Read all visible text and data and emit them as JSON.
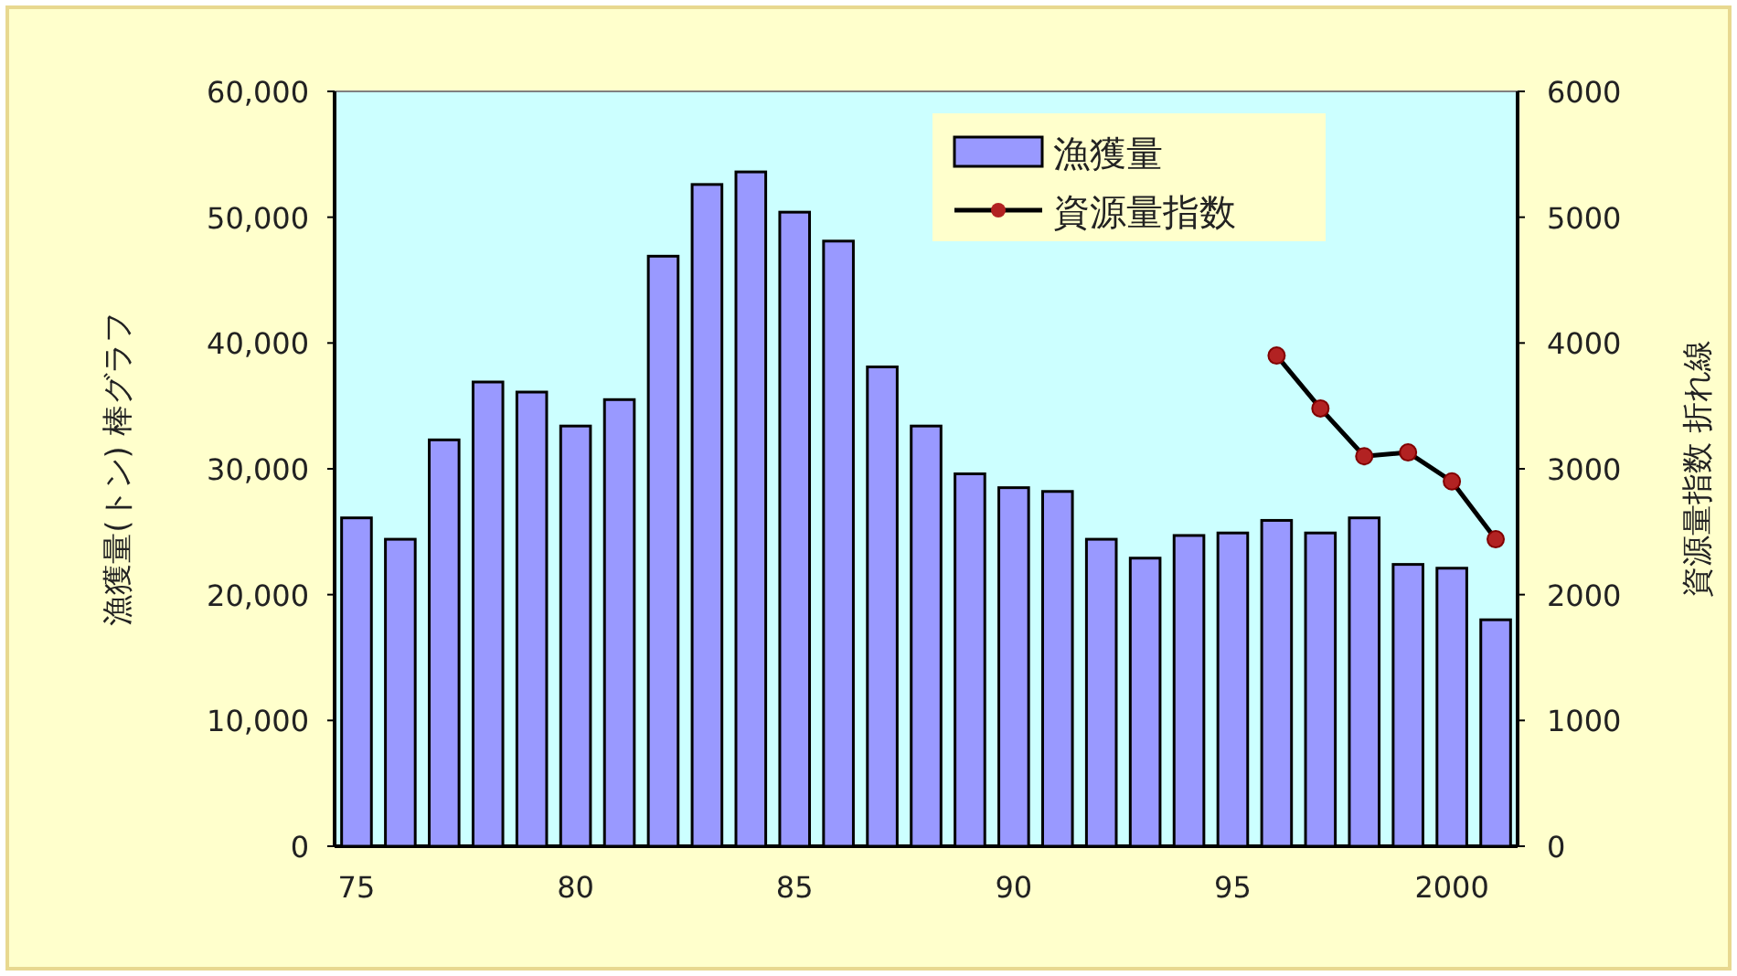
{
  "chart_data": {
    "type": "bar",
    "x": [
      1975,
      1976,
      1977,
      1978,
      1979,
      1980,
      1981,
      1982,
      1983,
      1984,
      1985,
      1986,
      1987,
      1988,
      1989,
      1990,
      1991,
      1992,
      1993,
      1994,
      1995,
      1996,
      1997,
      1998,
      1999,
      2000,
      2001
    ],
    "series": [
      {
        "name": "漁獲量",
        "color": "#9999ff",
        "values": [
          26100,
          24400,
          32300,
          36900,
          36100,
          33400,
          35500,
          46900,
          52600,
          53600,
          50400,
          48100,
          38100,
          33400,
          29600,
          28500,
          28200,
          24400,
          22900,
          24700,
          24900,
          25900,
          24900,
          26100,
          22400,
          22100,
          18000
        ]
      },
      {
        "name": "資源量指数",
        "type": "line",
        "axis": "y2",
        "color": "#000000",
        "values": [
          null,
          null,
          null,
          null,
          null,
          null,
          null,
          null,
          null,
          null,
          null,
          null,
          null,
          null,
          null,
          null,
          null,
          null,
          null,
          null,
          null,
          3900,
          3480,
          3100,
          3130,
          2900,
          2440
        ]
      }
    ],
    "ylabel": "漁獲量(トン)  棒グラフ",
    "y2label": "資源量指数  折れ線",
    "xlim": [
      1974.5,
      2001.5
    ],
    "xticks": [
      {
        "value": 1975,
        "label": "75"
      },
      {
        "value": 1980,
        "label": "80"
      },
      {
        "value": 1985,
        "label": "85"
      },
      {
        "value": 1990,
        "label": "90"
      },
      {
        "value": 1995,
        "label": "95"
      },
      2000
    ],
    "ylim": [
      0,
      60000
    ],
    "yticks": [
      0,
      {
        "value": 10000,
        "label": "10,000"
      },
      {
        "value": 20000,
        "label": "20,000"
      },
      {
        "value": 30000,
        "label": "30,000"
      },
      {
        "value": 40000,
        "label": "40,000"
      },
      {
        "value": 50000,
        "label": "50,000"
      },
      {
        "value": 60000,
        "label": "60,000"
      }
    ],
    "y2lim": [
      0,
      6000
    ],
    "y2ticks": [
      0,
      1000,
      2000,
      3000,
      4000,
      5000,
      6000
    ],
    "marker": "circle",
    "legend": "top",
    "grid": false
  }
}
